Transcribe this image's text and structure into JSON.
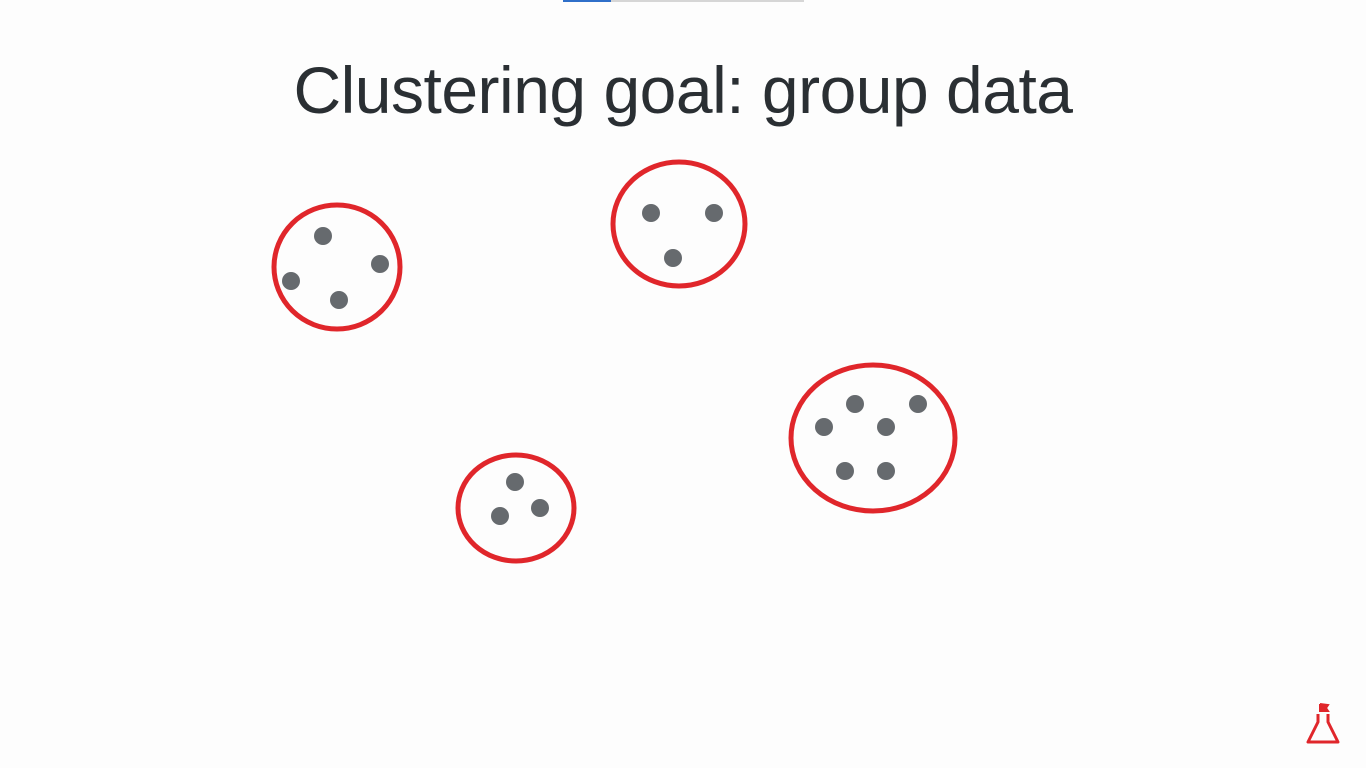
{
  "slide": {
    "title": "Clustering goal: group data"
  },
  "progress": {
    "fraction": 0.2
  },
  "colors": {
    "cluster_ring": "#e0262b",
    "data_point": "#666a6e",
    "title_text": "#2a2f33",
    "progress_fill": "#2f6fc9",
    "progress_track": "#d6d6d6",
    "logo": "#e0262b"
  },
  "icons": {
    "logo": "flask-flag-icon"
  }
}
